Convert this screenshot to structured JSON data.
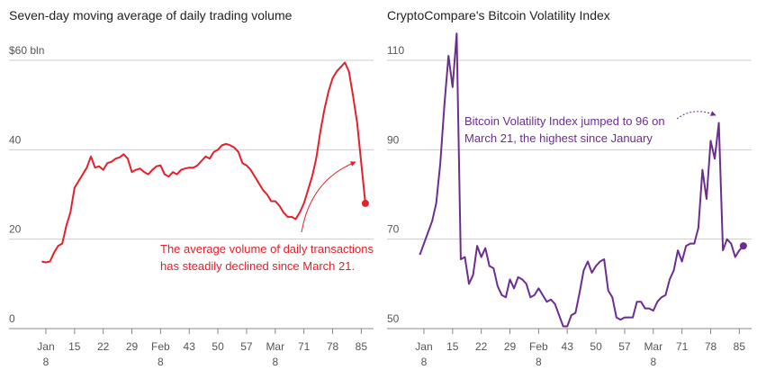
{
  "chart_data": [
    {
      "type": "line",
      "title": "Seven-day moving average of daily trading volume",
      "x": [
        7,
        8,
        9,
        10,
        11,
        12,
        13,
        14,
        15,
        16,
        17,
        18,
        19,
        20,
        21,
        22,
        23,
        24,
        25,
        26,
        27,
        28,
        29,
        30,
        31,
        32,
        33,
        34,
        35,
        36,
        37,
        38,
        39,
        40,
        41,
        42,
        43,
        44,
        45,
        46,
        47,
        48,
        49,
        50,
        51,
        52,
        53,
        54,
        55,
        56,
        57,
        58,
        59,
        60,
        61,
        62,
        63,
        64,
        65,
        66,
        67,
        68,
        69,
        70,
        71,
        72,
        73,
        74,
        75,
        76,
        77,
        78,
        79,
        80,
        81,
        82,
        83,
        84,
        85,
        86
      ],
      "values": [
        15,
        14.8,
        15,
        17,
        18.5,
        19,
        23,
        26,
        31.5,
        33,
        34.5,
        36,
        38.5,
        36,
        36.3,
        35.5,
        37,
        37.3,
        38,
        38.3,
        39,
        38,
        35,
        35.5,
        35.8,
        35,
        34.5,
        35.5,
        36.3,
        36.5,
        34.5,
        34,
        35,
        34.5,
        35.5,
        35.8,
        36,
        36,
        36.5,
        37.5,
        38.5,
        38,
        39.5,
        40,
        41,
        41.3,
        41,
        40.5,
        39.5,
        37,
        36.5,
        35.5,
        34,
        32.5,
        31,
        30,
        28.5,
        28.5,
        27.5,
        26,
        25,
        25,
        24.5,
        26,
        28,
        31,
        34,
        38,
        44,
        49,
        53,
        56,
        57.5,
        58.5,
        59.5,
        57.5,
        52,
        46,
        37,
        28
      ],
      "color": "#e3202b",
      "xlim": [
        -1,
        88
      ],
      "xticks": [
        {
          "value": 8,
          "label": "Jan\n8"
        },
        15,
        22,
        29,
        {
          "value": 36,
          "label": "Feb\n8"
        },
        43,
        50,
        57,
        {
          "value": 64,
          "label": "Mar\n8"
        },
        71,
        78,
        85
      ],
      "ylim": [
        0,
        60
      ],
      "yticks": [
        0,
        20,
        40,
        {
          "value": 60,
          "label": "$60 bln"
        }
      ],
      "grid": true,
      "annotation": [
        "The average volume of daily transactions",
        "has steadily declined since March 21."
      ]
    },
    {
      "type": "line",
      "title": "CryptoCompare's Bitcoin Volatility Index",
      "x": [
        7,
        8,
        9,
        10,
        11,
        12,
        13,
        14,
        15,
        16,
        17,
        18,
        19,
        20,
        21,
        22,
        23,
        24,
        25,
        26,
        27,
        28,
        29,
        30,
        31,
        32,
        33,
        34,
        35,
        36,
        37,
        38,
        39,
        40,
        41,
        42,
        43,
        44,
        45,
        46,
        47,
        48,
        49,
        50,
        51,
        52,
        53,
        54,
        55,
        56,
        57,
        58,
        59,
        60,
        61,
        62,
        63,
        64,
        65,
        66,
        67,
        68,
        69,
        70,
        71,
        72,
        73,
        74,
        75,
        76,
        77,
        78,
        79,
        80,
        81,
        82,
        83,
        84,
        85,
        86
      ],
      "values": [
        66.5,
        69,
        71.5,
        74,
        78,
        87,
        100,
        111,
        104,
        116,
        65.5,
        66,
        60,
        62,
        68.5,
        66,
        68,
        64,
        63.5,
        59.5,
        57.5,
        57,
        61,
        59,
        61.5,
        61,
        60,
        57,
        57.5,
        59,
        57.5,
        56,
        56.5,
        55.5,
        53,
        50.5,
        50.5,
        53,
        53.5,
        58,
        63,
        65,
        62.5,
        64,
        65,
        65.5,
        58.5,
        57,
        52.5,
        52,
        52.5,
        52.5,
        52.5,
        56,
        56,
        54.5,
        54.5,
        54,
        56,
        57,
        57.5,
        61,
        63,
        67.5,
        65,
        68.5,
        69,
        69,
        72.5,
        85.5,
        79,
        92,
        88,
        96,
        67.5,
        70,
        69,
        66,
        67.5,
        68.5
      ],
      "color": "#6b2e90",
      "xlim": [
        -1,
        88
      ],
      "xticks": [
        {
          "value": 8,
          "label": "Jan\n8"
        },
        15,
        22,
        29,
        {
          "value": 36,
          "label": "Feb\n8"
        },
        43,
        50,
        57,
        {
          "value": 64,
          "label": "Mar\n8"
        },
        71,
        78,
        85
      ],
      "ylim": [
        50,
        110
      ],
      "yticks": [
        50,
        70,
        90,
        110
      ],
      "grid": true,
      "annotation": [
        "Bitcoin Volatility Index jumped to 96 on",
        "March 21, the highest since January"
      ]
    }
  ]
}
